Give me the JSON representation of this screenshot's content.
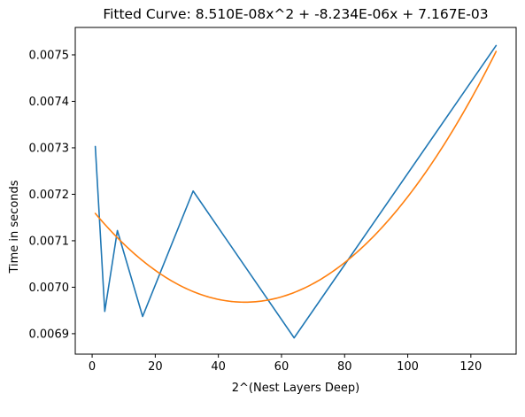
{
  "chart_data": {
    "type": "line",
    "title": "Fitted Curve: 8.510E-08x^2 + -8.234E-06x + 7.167E-03",
    "xlabel": "2^(Nest Layers Deep)",
    "ylabel": "Time in seconds",
    "xlim": [
      -5.35,
      134.35
    ],
    "ylim": [
      0.006856,
      0.007559
    ],
    "x_ticks": [
      0,
      20,
      40,
      60,
      80,
      100,
      120
    ],
    "x_tick_labels": [
      "0",
      "20",
      "40",
      "60",
      "80",
      "100",
      "120"
    ],
    "y_ticks": [
      0.0069,
      0.007,
      0.0071,
      0.0072,
      0.0073,
      0.0074,
      0.0075
    ],
    "y_tick_labels": [
      "0.0069",
      "0.0070",
      "0.0071",
      "0.0072",
      "0.0073",
      "0.0074",
      "0.0075"
    ],
    "grid": false,
    "series": [
      {
        "color": "#1f77b4",
        "x": [
          1,
          4,
          8,
          16,
          32,
          64,
          128
        ],
        "y": [
          0.007303,
          0.006948,
          0.007122,
          0.006937,
          0.007207,
          0.006891,
          0.00752
        ]
      },
      {
        "color": "#ff7f0e",
        "function": "quadratic",
        "coefficients": [
          8.51e-08,
          -8.234e-06,
          0.007167
        ],
        "x_range": [
          1,
          128
        ]
      }
    ]
  }
}
